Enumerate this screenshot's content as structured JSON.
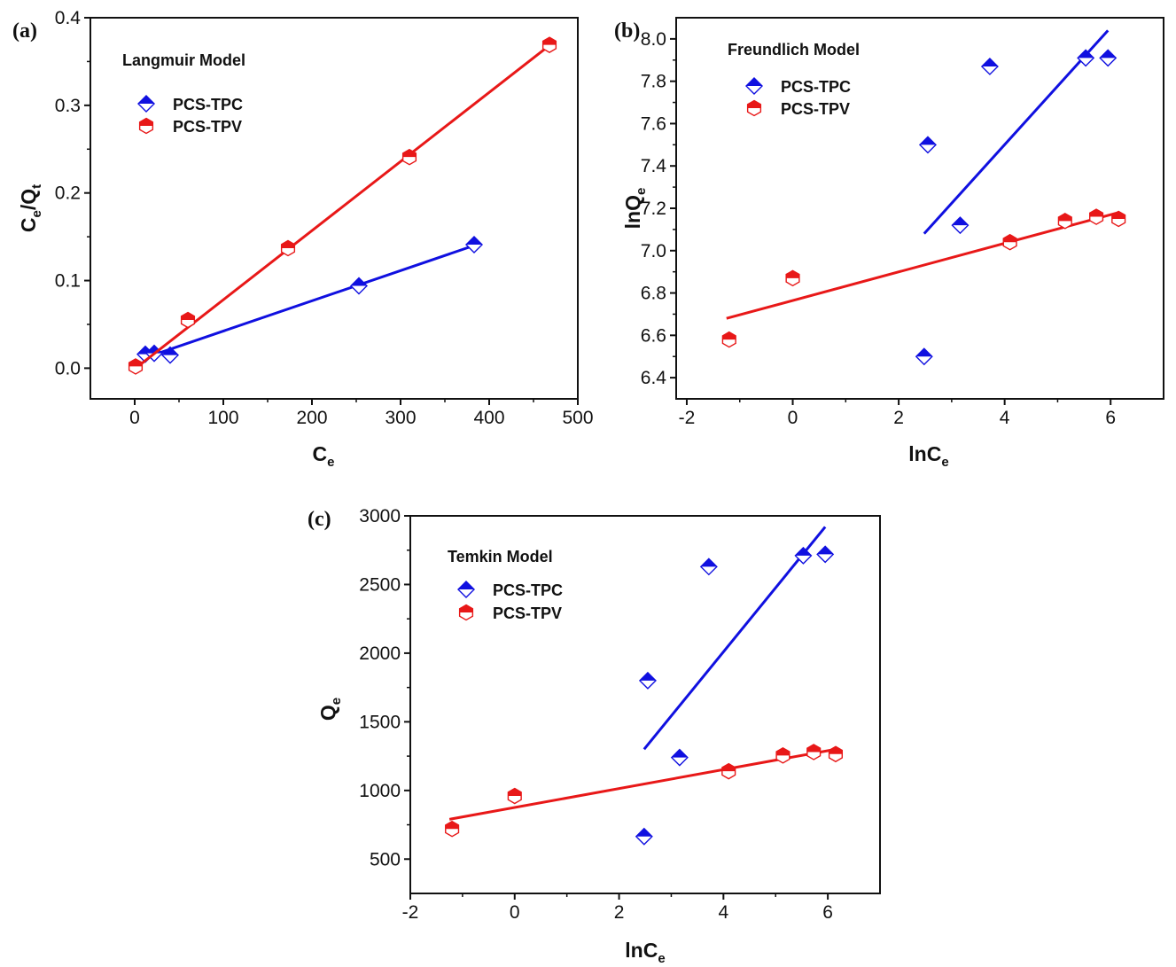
{
  "colors": {
    "tpc": "#1010e0",
    "tpv": "#e81818",
    "axis": "#111111"
  },
  "chart_data": [
    {
      "type": "scatter",
      "panel_label": "(a)",
      "title": "Langmuir Model",
      "xlabel": "C",
      "xlabel_sub": "e",
      "ylabel": "C",
      "ylabel_sub": "e",
      "ylabel_post": "/Q",
      "ylabel_post_sub": "t",
      "xlim": [
        -50,
        500
      ],
      "ylim": [
        -0.035,
        0.4
      ],
      "xticks": [
        0,
        100,
        200,
        300,
        400,
        500
      ],
      "yticks": [
        0.0,
        0.1,
        0.2,
        0.3,
        0.4
      ],
      "ytick_decimals": 1,
      "legend_position": "top-left",
      "series": [
        {
          "name": "PCS-TPC",
          "marker": "diamond",
          "color_key": "tpc",
          "x": [
            12,
            22,
            40,
            253,
            383
          ],
          "y": [
            0.016,
            0.017,
            0.015,
            0.094,
            0.141
          ],
          "fit": [
            [
              12,
              0.012
            ],
            [
              383,
              0.14
            ]
          ]
        },
        {
          "name": "PCS-TPV",
          "marker": "hexagon",
          "color_key": "tpv",
          "x": [
            1,
            60,
            173,
            310,
            468
          ],
          "y": [
            0.002,
            0.055,
            0.137,
            0.241,
            0.369
          ],
          "fit": [
            [
              1,
              0.0
            ],
            [
              470,
              0.37
            ]
          ]
        }
      ]
    },
    {
      "type": "scatter",
      "panel_label": "(b)",
      "title": "Freundlich Model",
      "xlabel": "lnC",
      "xlabel_sub": "e",
      "ylabel": "lnQ",
      "ylabel_sub": "e",
      "ylabel_post": "",
      "ylabel_post_sub": "",
      "xlim": [
        -2.2,
        7.0
      ],
      "ylim": [
        6.3,
        8.1
      ],
      "xticks": [
        -2,
        0,
        2,
        4,
        6
      ],
      "yticks": [
        6.4,
        6.6,
        6.8,
        7.0,
        7.2,
        7.4,
        7.6,
        7.8,
        8.0
      ],
      "ytick_decimals": 1,
      "legend_position": "top-left",
      "series": [
        {
          "name": "PCS-TPC",
          "marker": "diamond",
          "color_key": "tpc",
          "x": [
            2.48,
            2.55,
            3.16,
            3.72,
            5.53,
            5.95
          ],
          "y": [
            6.5,
            7.5,
            7.12,
            7.87,
            7.91,
            7.91
          ],
          "fit": [
            [
              2.48,
              7.08
            ],
            [
              5.95,
              8.04
            ]
          ]
        },
        {
          "name": "PCS-TPV",
          "marker": "hexagon",
          "color_key": "tpv",
          "x": [
            -1.2,
            0.0,
            4.1,
            5.14,
            5.73,
            6.15
          ],
          "y": [
            6.58,
            6.87,
            7.04,
            7.14,
            7.16,
            7.15
          ],
          "fit": [
            [
              -1.25,
              6.68
            ],
            [
              6.15,
              7.18
            ]
          ]
        }
      ]
    },
    {
      "type": "scatter",
      "panel_label": "(c)",
      "title": "Temkin Model",
      "xlabel": "lnC",
      "xlabel_sub": "e",
      "ylabel": "Q",
      "ylabel_sub": "e",
      "ylabel_post": "",
      "ylabel_post_sub": "",
      "xlim": [
        -2.0,
        7.0
      ],
      "ylim": [
        250,
        3000
      ],
      "xticks": [
        -2,
        0,
        2,
        4,
        6
      ],
      "yticks": [
        500,
        1000,
        1500,
        2000,
        2500,
        3000
      ],
      "ytick_decimals": 0,
      "legend_position": "top-left",
      "series": [
        {
          "name": "PCS-TPC",
          "marker": "diamond",
          "color_key": "tpc",
          "x": [
            2.48,
            2.55,
            3.16,
            3.72,
            5.53,
            5.95
          ],
          "y": [
            665,
            1800,
            1240,
            2630,
            2710,
            2720
          ],
          "fit": [
            [
              2.48,
              1300
            ],
            [
              5.95,
              2920
            ]
          ]
        },
        {
          "name": "PCS-TPV",
          "marker": "hexagon",
          "color_key": "tpv",
          "x": [
            -1.2,
            0.0,
            4.1,
            5.14,
            5.73,
            6.15
          ],
          "y": [
            720,
            960,
            1140,
            1255,
            1280,
            1265
          ],
          "fit": [
            [
              -1.25,
              790
            ],
            [
              6.15,
              1300
            ]
          ]
        }
      ]
    }
  ]
}
